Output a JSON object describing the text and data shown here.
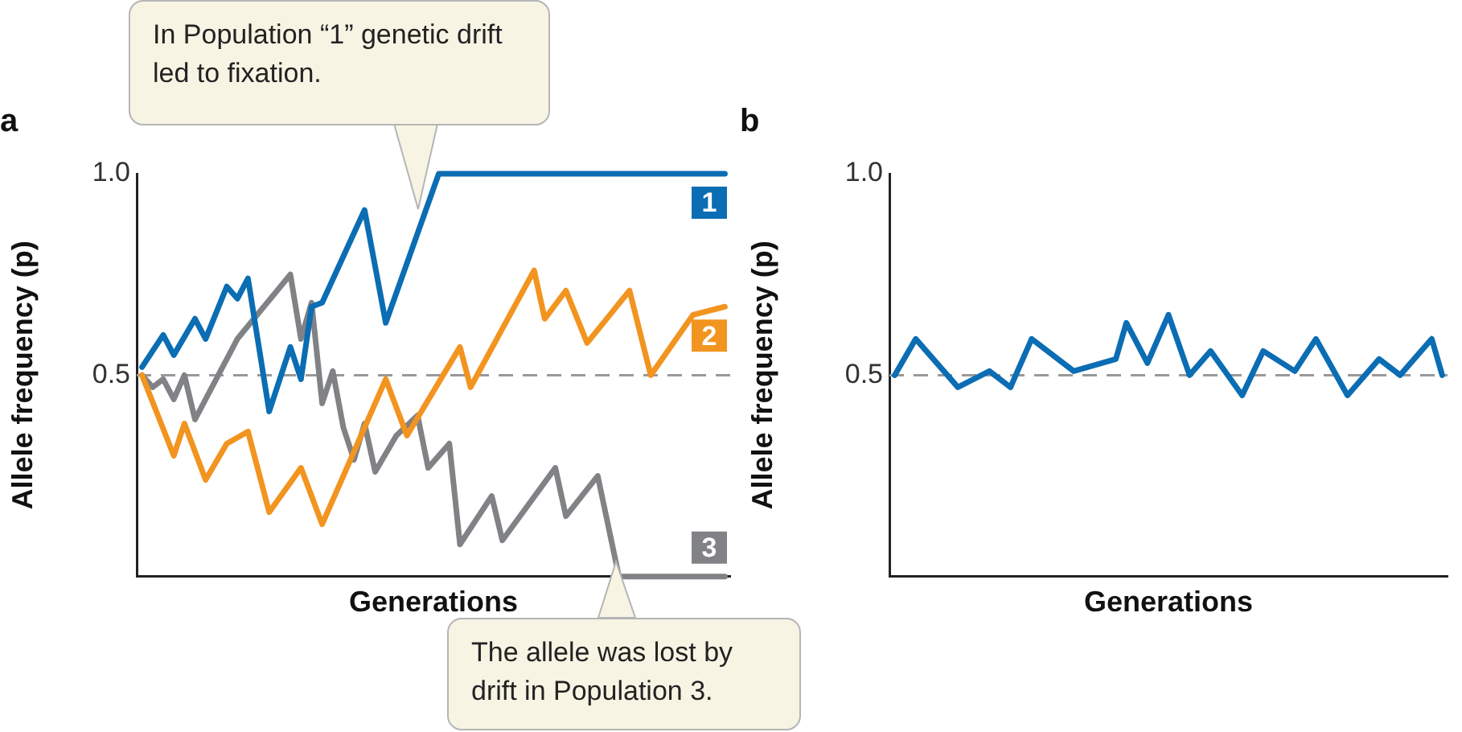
{
  "chart_data": [
    {
      "type": "line",
      "title": "a",
      "ylabel": "Allele frequency (p)",
      "xlabel": "Generations",
      "ylim": [
        0,
        1
      ],
      "yticks": [
        0.5,
        {
          "value": 1,
          "label": "1.0"
        }
      ],
      "tick_labels": "y",
      "marker": "none",
      "line_style": "solid",
      "categories": [
        null,
        null,
        null,
        null,
        null,
        null,
        null,
        null,
        null,
        null,
        null,
        null,
        null,
        null,
        null,
        null,
        null,
        null,
        null,
        null,
        null,
        null,
        null,
        null,
        null,
        null,
        null,
        null,
        null,
        null,
        null,
        null,
        null,
        null,
        null,
        null,
        null,
        null,
        null,
        null,
        null,
        null,
        null,
        null,
        null,
        null,
        null,
        null,
        null,
        null,
        null,
        null,
        null,
        null,
        null,
        null
      ],
      "series": [
        {
          "name": "1",
          "color": "#0b6db3",
          "values": [
            0.52,
            null,
            0.6,
            0.55,
            null,
            0.64,
            0.59,
            null,
            0.72,
            0.69,
            0.74,
            null,
            0.41,
            null,
            0.57,
            0.49,
            0.67,
            0.68,
            null,
            null,
            null,
            0.91,
            null,
            0.63,
            null,
            null,
            null,
            null,
            1.0,
            null,
            null,
            null,
            null,
            null,
            null,
            null,
            null,
            null,
            null,
            null,
            null,
            null,
            null,
            null,
            null,
            null,
            null,
            null,
            null,
            null,
            null,
            null,
            null,
            null,
            null,
            1.0
          ]
        },
        {
          "name": "2",
          "color": "#f29420",
          "values": [
            0.5,
            null,
            null,
            0.3,
            0.38,
            null,
            0.24,
            null,
            0.33,
            null,
            0.36,
            null,
            0.16,
            null,
            null,
            0.27,
            null,
            0.13,
            null,
            null,
            null,
            null,
            null,
            0.49,
            null,
            0.35,
            null,
            null,
            null,
            null,
            0.57,
            0.47,
            null,
            null,
            null,
            null,
            null,
            0.76,
            0.64,
            null,
            0.71,
            null,
            0.58,
            null,
            null,
            null,
            0.71,
            null,
            0.5,
            null,
            null,
            null,
            0.65,
            null,
            null,
            0.67
          ]
        },
        {
          "name": "3",
          "color": "#808285",
          "values": [
            0.5,
            0.47,
            0.49,
            0.44,
            0.5,
            0.39,
            null,
            null,
            null,
            0.59,
            null,
            null,
            null,
            null,
            0.75,
            0.59,
            0.68,
            0.43,
            0.51,
            0.37,
            0.29,
            0.38,
            0.26,
            null,
            0.35,
            null,
            0.4,
            0.27,
            null,
            0.33,
            0.08,
            null,
            null,
            0.2,
            0.09,
            null,
            null,
            null,
            null,
            0.27,
            0.15,
            null,
            null,
            0.25,
            null,
            0,
            null,
            null,
            null,
            null,
            null,
            null,
            null,
            null,
            null,
            0
          ]
        }
      ],
      "ref_lines": [
        {
          "axis": "y",
          "value": 0.5,
          "color": "#999999",
          "line_style": "dashed"
        }
      ],
      "annotations": [
        "In Population “1” genetic drift led to fixation.",
        "The allele was lost by drift in Population 3."
      ]
    },
    {
      "type": "line",
      "title": "b",
      "ylabel": "Allele frequency (p)",
      "xlabel": "Generations",
      "ylim": [
        0,
        1
      ],
      "yticks": [
        0.5,
        {
          "value": 1,
          "label": "1.0"
        }
      ],
      "tick_labels": "y",
      "marker": "none",
      "line_style": "solid",
      "categories": [
        null,
        null,
        null,
        null,
        null,
        null,
        null,
        null,
        null,
        null,
        null,
        null,
        null,
        null,
        null,
        null,
        null,
        null,
        null,
        null,
        null,
        null,
        null,
        null,
        null,
        null,
        null,
        null,
        null,
        null,
        null,
        null,
        null,
        null,
        null,
        null,
        null,
        null,
        null,
        null,
        null,
        null,
        null,
        null,
        null,
        null,
        null,
        null,
        null,
        null,
        null,
        null,
        null
      ],
      "series": [
        {
          "color": "#0b6db3",
          "values": [
            0.5,
            null,
            0.59,
            null,
            null,
            null,
            0.47,
            null,
            null,
            0.51,
            null,
            0.47,
            null,
            0.59,
            null,
            null,
            null,
            0.51,
            null,
            null,
            null,
            0.54,
            0.63,
            null,
            0.53,
            null,
            0.65,
            null,
            0.5,
            null,
            0.56,
            null,
            null,
            0.45,
            null,
            0.56,
            null,
            null,
            0.51,
            null,
            0.59,
            null,
            null,
            0.45,
            null,
            null,
            0.54,
            null,
            0.5,
            null,
            null,
            0.59,
            0.5
          ]
        }
      ],
      "ref_lines": [
        {
          "axis": "y",
          "value": 0.5,
          "color": "#999999",
          "line_style": "dashed"
        }
      ]
    }
  ]
}
